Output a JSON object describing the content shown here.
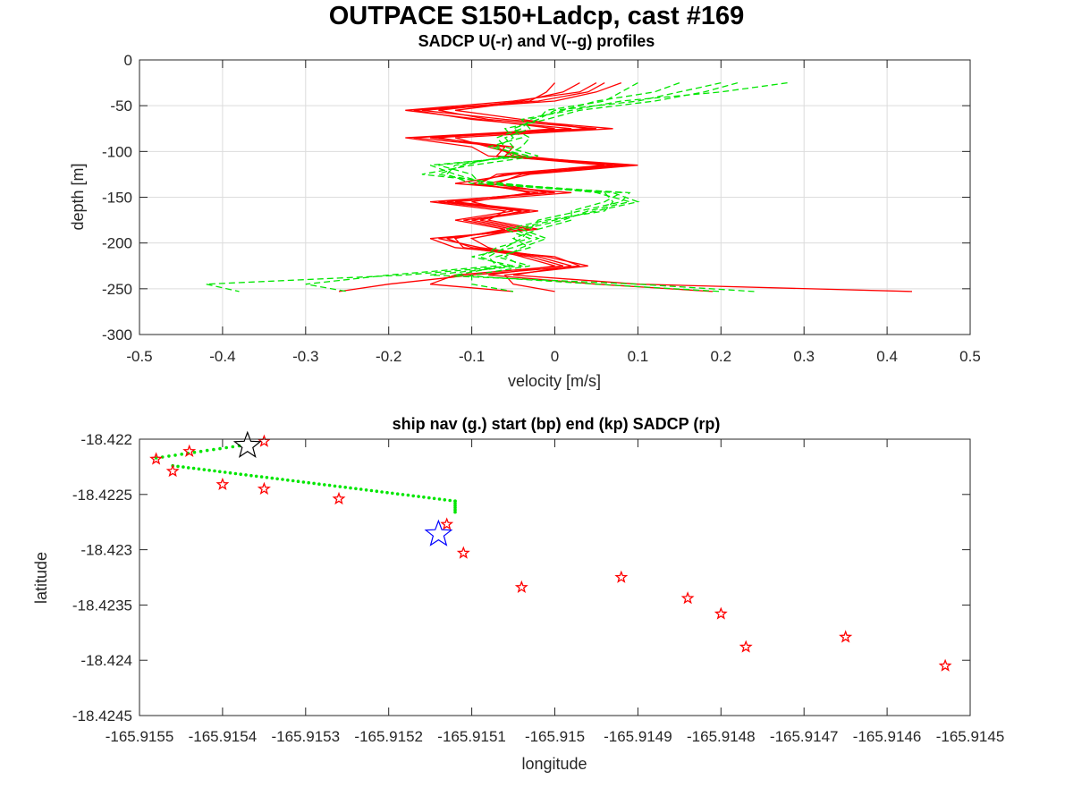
{
  "figure": {
    "title": "OUTPACE S150+Ladcp, cast #169"
  },
  "chart_data": [
    {
      "type": "line",
      "title": "SADCP U(-r) and V(--g) profiles",
      "xlabel": "velocity [m/s]",
      "ylabel": "depth [m]",
      "xlim": [
        -0.5,
        0.5
      ],
      "ylim": [
        -300,
        0
      ],
      "xticks": [
        "-0.5",
        "-0.4",
        "-0.3",
        "-0.2",
        "-0.1",
        "0",
        "0.1",
        "0.2",
        "0.3",
        "0.4",
        "0.5"
      ],
      "yticks": [
        "0",
        "-50",
        "-100",
        "-150",
        "-200",
        "-250",
        "-300"
      ],
      "grid": true,
      "series": [
        {
          "style": "solid",
          "color": "#ff0000",
          "depth": [
            -25,
            -35,
            -45,
            -55,
            -65,
            -75,
            -85,
            -95,
            -105,
            -115,
            -125,
            -135,
            -145,
            -155,
            -165,
            -175,
            -185,
            -195,
            -205,
            -215,
            -225,
            -235,
            -245,
            -253
          ],
          "profiles": [
            [
              0.06,
              0.04,
              -0.02,
              -0.17,
              -0.1,
              0.02,
              -0.18,
              -0.1,
              -0.08,
              0.09,
              -0.06,
              -0.1,
              -0.02,
              -0.13,
              -0.03,
              -0.11,
              -0.05,
              -0.13,
              -0.1,
              -0.02,
              0.02,
              -0.05,
              0.1,
              0.43
            ],
            [
              0.03,
              0.01,
              -0.04,
              -0.14,
              -0.08,
              0.05,
              -0.15,
              -0.05,
              -0.06,
              0.1,
              -0.03,
              -0.08,
              0.0,
              -0.15,
              -0.06,
              -0.08,
              -0.02,
              -0.15,
              -0.12,
              0.0,
              0.03,
              -0.1,
              -0.2,
              -0.26
            ],
            [
              0.08,
              0.05,
              0.0,
              -0.16,
              -0.06,
              0.07,
              -0.12,
              -0.08,
              -0.04,
              0.07,
              -0.05,
              -0.12,
              0.02,
              -0.12,
              -0.02,
              -0.1,
              -0.04,
              -0.1,
              -0.08,
              -0.04,
              0.0,
              -0.08,
              0.05,
              0.19
            ],
            [
              0.0,
              -0.01,
              -0.03,
              -0.12,
              -0.04,
              0.04,
              -0.17,
              -0.06,
              -0.07,
              0.06,
              -0.07,
              -0.09,
              -0.03,
              -0.1,
              -0.05,
              -0.12,
              -0.06,
              -0.12,
              -0.11,
              -0.03,
              0.01,
              -0.12,
              -0.15,
              -0.05
            ],
            [
              0.05,
              0.03,
              -0.05,
              -0.18,
              -0.09,
              0.0,
              -0.14,
              -0.07,
              -0.05,
              0.08,
              -0.04,
              -0.07,
              -0.01,
              -0.14,
              -0.04,
              -0.09,
              -0.03,
              -0.14,
              -0.09,
              -0.01,
              0.04,
              -0.06,
              -0.05,
              0.0
            ]
          ]
        },
        {
          "style": "dashed",
          "color": "#00e600",
          "depth": [
            -25,
            -35,
            -45,
            -55,
            -65,
            -75,
            -85,
            -95,
            -105,
            -115,
            -125,
            -135,
            -145,
            -155,
            -165,
            -175,
            -185,
            -195,
            -205,
            -215,
            -225,
            -235,
            -245,
            -253
          ],
          "profiles": [
            [
              0.2,
              0.15,
              0.1,
              0.0,
              -0.02,
              -0.05,
              -0.04,
              -0.08,
              -0.03,
              -0.15,
              -0.12,
              -0.08,
              0.07,
              0.1,
              0.05,
              0.0,
              -0.05,
              -0.02,
              -0.05,
              -0.1,
              -0.05,
              -0.18,
              -0.42,
              -0.38
            ],
            [
              0.28,
              0.2,
              0.08,
              0.02,
              -0.04,
              -0.03,
              -0.06,
              -0.05,
              -0.05,
              -0.12,
              -0.13,
              -0.1,
              0.09,
              0.08,
              0.03,
              -0.02,
              -0.03,
              -0.04,
              -0.06,
              -0.08,
              -0.07,
              -0.2,
              -0.3,
              -0.25
            ],
            [
              0.15,
              0.12,
              0.05,
              0.01,
              -0.03,
              -0.04,
              -0.07,
              -0.06,
              -0.02,
              -0.1,
              -0.16,
              -0.06,
              0.05,
              0.09,
              0.04,
              0.01,
              -0.04,
              -0.01,
              -0.04,
              -0.06,
              -0.04,
              -0.15,
              0.1,
              0.24
            ],
            [
              0.22,
              0.18,
              0.12,
              0.03,
              -0.01,
              -0.06,
              -0.05,
              -0.07,
              -0.04,
              -0.14,
              -0.1,
              -0.09,
              0.06,
              0.07,
              0.06,
              -0.01,
              -0.06,
              -0.03,
              -0.07,
              -0.09,
              -0.06,
              -0.12,
              0.05,
              0.2
            ],
            [
              0.1,
              0.08,
              0.06,
              -0.01,
              -0.02,
              -0.05,
              -0.03,
              -0.04,
              -0.06,
              -0.11,
              -0.14,
              -0.07,
              0.08,
              0.06,
              0.02,
              0.02,
              -0.02,
              -0.05,
              -0.03,
              -0.07,
              -0.03,
              -0.1,
              -0.1,
              -0.05
            ]
          ]
        }
      ]
    },
    {
      "type": "scatter",
      "title": "ship nav (g.) start (bp) end (kp) SADCP (rp)",
      "xlabel": "longitude",
      "ylabel": "latitude",
      "xlim": [
        -165.9155,
        -165.9145
      ],
      "ylim": [
        -18.4245,
        -18.422
      ],
      "xticks": [
        "-165.9155",
        "-165.9154",
        "-165.9153",
        "-165.9152",
        "-165.9151",
        "-165.915",
        "-165.9149",
        "-165.9148",
        "-165.9147",
        "-165.9146",
        "-165.9145"
      ],
      "yticks": [
        "-18.422",
        "-18.4225",
        "-18.423",
        "-18.4235",
        "-18.424",
        "-18.4245"
      ],
      "grid": false,
      "ship_nav": {
        "color": "#00e600",
        "segments": [
          {
            "from": [
              -165.91548,
              -18.42217
            ],
            "to": [
              -165.91538,
              -18.42206
            ],
            "n": 14
          },
          {
            "from": [
              -165.91546,
              -18.42224
            ],
            "to": [
              -165.91512,
              -18.42256
            ],
            "n": 55
          },
          {
            "from": [
              -165.91512,
              -18.42256
            ],
            "to": [
              -165.91512,
              -18.42266
            ],
            "n": 6
          }
        ]
      },
      "start_point": {
        "color": "#0000ff",
        "lon": -165.91514,
        "lat": -18.42286
      },
      "end_point": {
        "color": "#000000",
        "lon": -165.91537,
        "lat": -18.42206
      },
      "sadcp_points": {
        "color": "#ff0000",
        "lon": [
          -165.91535,
          -165.91548,
          -165.91544,
          -165.91546,
          -165.9154,
          -165.91535,
          -165.91526,
          -165.91513,
          -165.91511,
          -165.91504,
          -165.91492,
          -165.91484,
          -165.9148,
          -165.91477,
          -165.91465,
          -165.91453
        ],
        "lat": [
          -18.42202,
          -18.42218,
          -18.42211,
          -18.42229,
          -18.42241,
          -18.42245,
          -18.42254,
          -18.42277,
          -18.42303,
          -18.42334,
          -18.42325,
          -18.42344,
          -18.42358,
          -18.42388,
          -18.42379,
          -18.42405
        ]
      }
    }
  ]
}
